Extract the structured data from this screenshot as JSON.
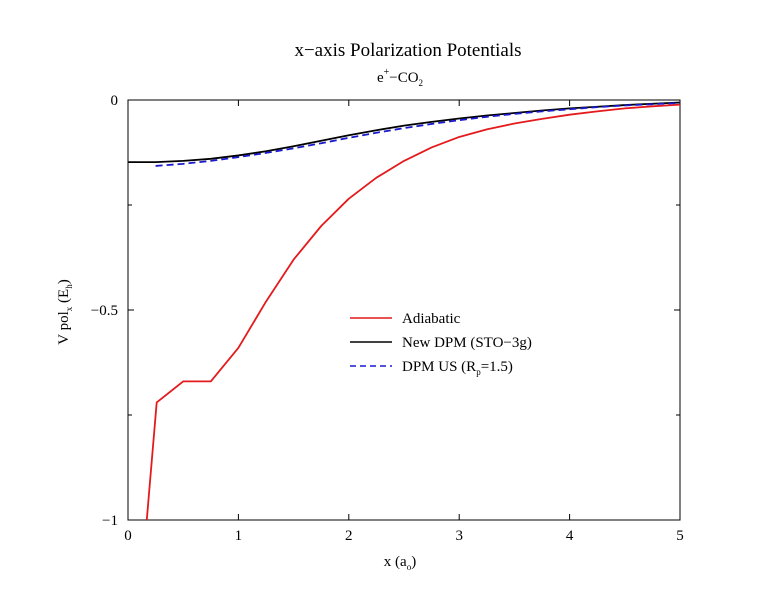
{
  "chart_data": {
    "type": "line",
    "title": "x−axis Polarization Potentials",
    "subtitle": {
      "base": "e",
      "sup": "+",
      "mid": "−CO",
      "sub": "2"
    },
    "xlabel": {
      "base": "x (a",
      "sub": "o",
      "tail": ")"
    },
    "ylabel": {
      "base": "V pol",
      "sub": "x",
      "mid": " (E",
      "sub2": "h",
      "tail": ")"
    },
    "xlim": [
      0,
      5
    ],
    "ylim": [
      -1,
      0
    ],
    "xticks": [
      {
        "value": 0,
        "label": "0"
      },
      {
        "value": 1,
        "label": "1"
      },
      {
        "value": 2,
        "label": "2"
      },
      {
        "value": 3,
        "label": "3"
      },
      {
        "value": 4,
        "label": "4"
      },
      {
        "value": 5,
        "label": "5"
      }
    ],
    "yticks": [
      {
        "value": 0,
        "label": "0"
      },
      {
        "value": -0.5,
        "label": "−0.5"
      },
      {
        "value": -1,
        "label": "−1"
      }
    ],
    "grid": false,
    "legend_position": "center",
    "series": [
      {
        "name": "Adiabatic",
        "color": "#e41a1c",
        "dash": "solid",
        "points": [
          [
            0.17,
            -1.0
          ],
          [
            0.26,
            -0.72
          ],
          [
            0.5,
            -0.67
          ],
          [
            0.75,
            -0.67
          ],
          [
            1.0,
            -0.59
          ],
          [
            1.25,
            -0.48
          ],
          [
            1.5,
            -0.38
          ],
          [
            1.75,
            -0.3
          ],
          [
            2.0,
            -0.235
          ],
          [
            2.25,
            -0.185
          ],
          [
            2.5,
            -0.145
          ],
          [
            2.75,
            -0.113
          ],
          [
            3.0,
            -0.088
          ],
          [
            3.25,
            -0.07
          ],
          [
            3.5,
            -0.056
          ],
          [
            3.75,
            -0.045
          ],
          [
            4.0,
            -0.035
          ],
          [
            4.25,
            -0.027
          ],
          [
            4.5,
            -0.02
          ],
          [
            4.75,
            -0.015
          ],
          [
            5.0,
            -0.011
          ]
        ]
      },
      {
        "name": {
          "base": "New DPM (STO−3g)"
        },
        "color": "#000000",
        "dash": "solid",
        "points": [
          [
            0.0,
            -0.148
          ],
          [
            0.25,
            -0.148
          ],
          [
            0.5,
            -0.145
          ],
          [
            0.75,
            -0.14
          ],
          [
            1.0,
            -0.132
          ],
          [
            1.25,
            -0.122
          ],
          [
            1.5,
            -0.11
          ],
          [
            1.75,
            -0.097
          ],
          [
            2.0,
            -0.084
          ],
          [
            2.25,
            -0.072
          ],
          [
            2.5,
            -0.061
          ],
          [
            2.75,
            -0.052
          ],
          [
            3.0,
            -0.044
          ],
          [
            3.25,
            -0.037
          ],
          [
            3.5,
            -0.031
          ],
          [
            3.75,
            -0.025
          ],
          [
            4.0,
            -0.02
          ],
          [
            4.25,
            -0.016
          ],
          [
            4.5,
            -0.012
          ],
          [
            4.75,
            -0.009
          ],
          [
            5.0,
            -0.006
          ]
        ]
      },
      {
        "name": {
          "base": "DPM US (R",
          "sub": "p",
          "tail": "=1.5)"
        },
        "color": "#1a1acc",
        "dash": "dashed",
        "points": [
          [
            0.25,
            -0.157
          ],
          [
            0.5,
            -0.152
          ],
          [
            0.75,
            -0.145
          ],
          [
            1.0,
            -0.136
          ],
          [
            1.25,
            -0.126
          ],
          [
            1.5,
            -0.115
          ],
          [
            1.75,
            -0.103
          ],
          [
            2.0,
            -0.09
          ],
          [
            2.25,
            -0.078
          ],
          [
            2.5,
            -0.067
          ],
          [
            2.75,
            -0.057
          ],
          [
            3.0,
            -0.048
          ],
          [
            3.25,
            -0.04
          ],
          [
            3.5,
            -0.033
          ],
          [
            3.75,
            -0.027
          ],
          [
            4.0,
            -0.022
          ],
          [
            4.25,
            -0.017
          ],
          [
            4.5,
            -0.013
          ],
          [
            4.75,
            -0.01
          ],
          [
            5.0,
            -0.007
          ]
        ]
      }
    ]
  }
}
